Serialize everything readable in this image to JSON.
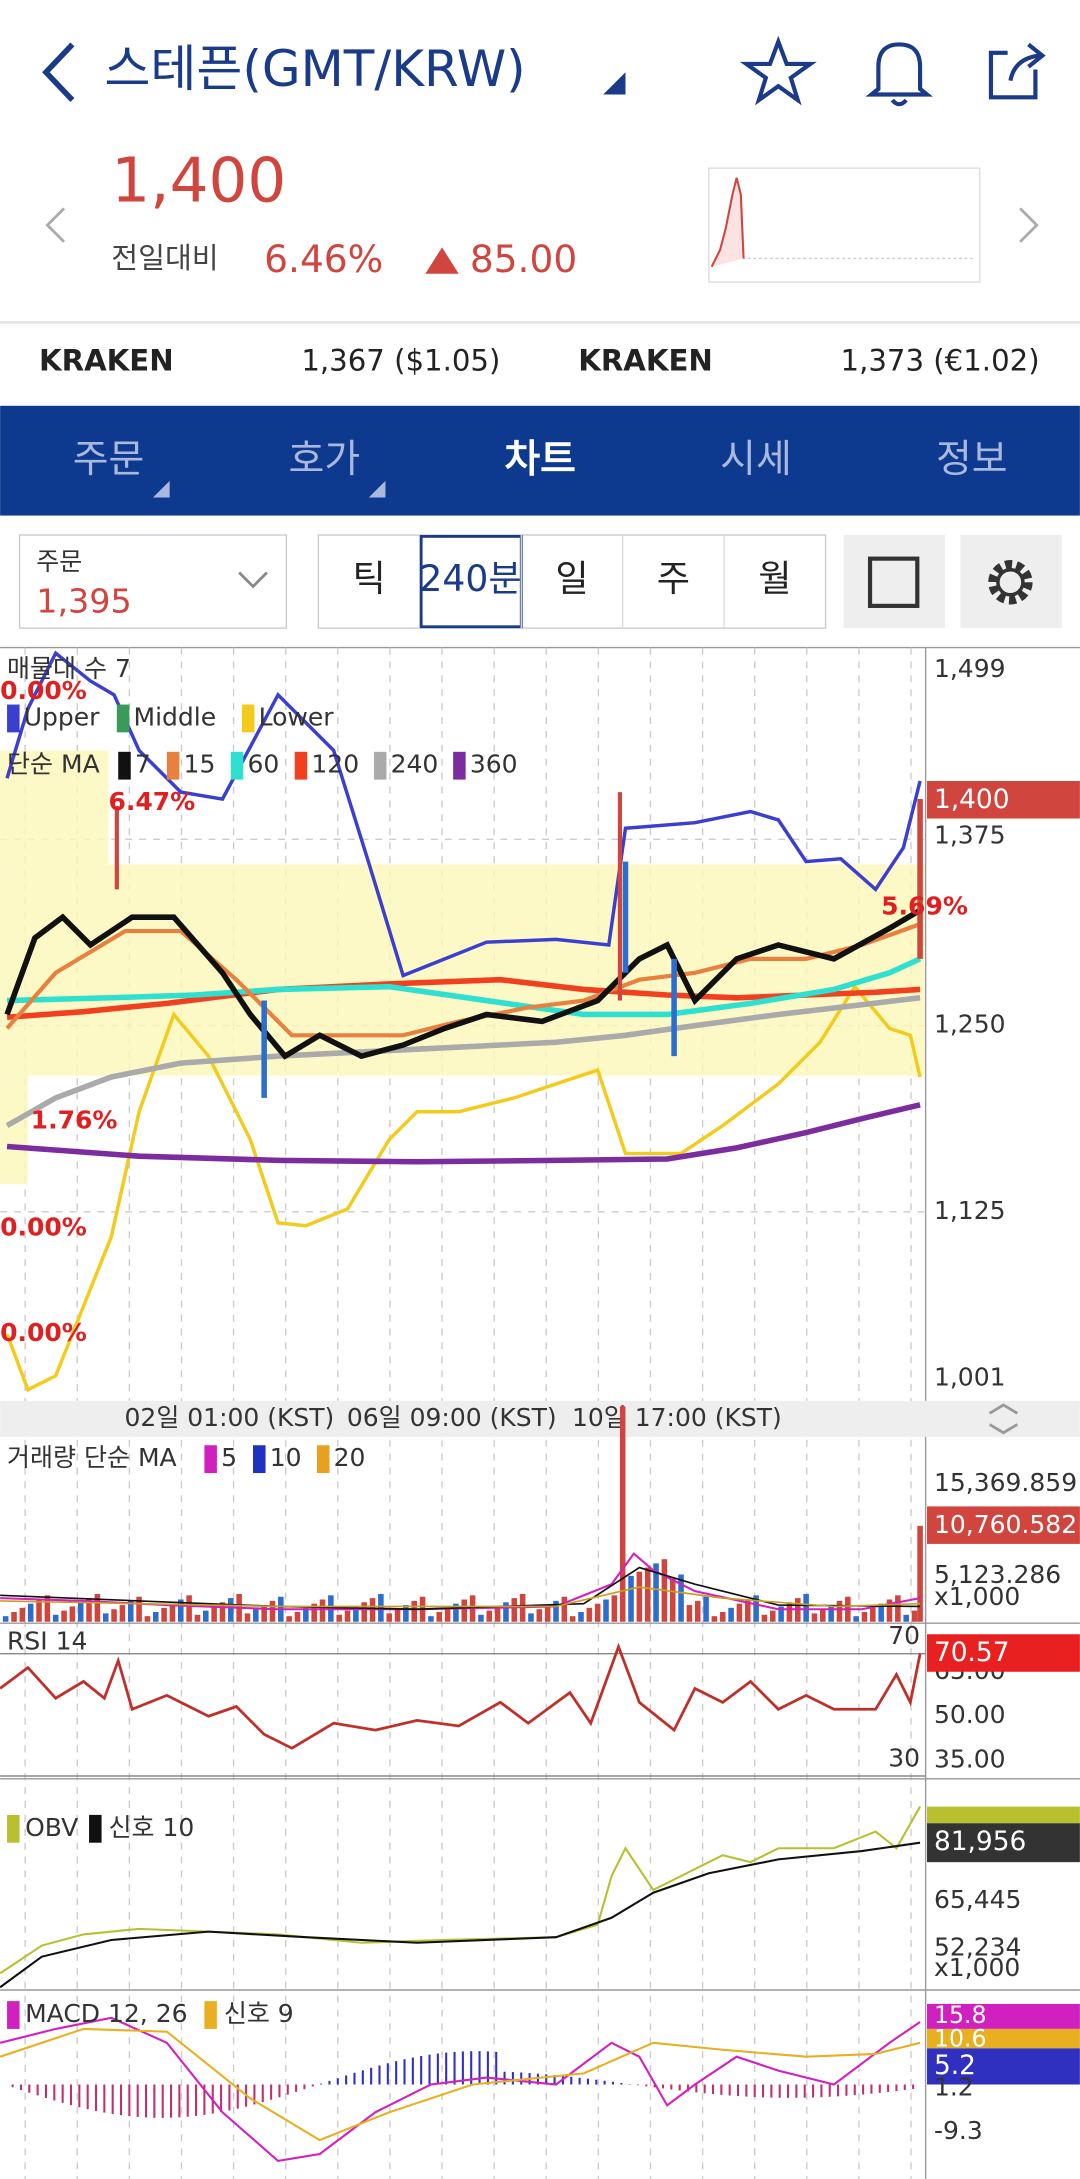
{
  "header": {
    "title": "스테픈(GMT/KRW)"
  },
  "price": {
    "current": "1,400",
    "change_label": "전일대비",
    "change_pct": "6.46%",
    "change_abs": "85.00"
  },
  "exchanges": [
    {
      "name": "KRAKEN",
      "price": "1,367 ($1.05)"
    },
    {
      "name": "KRAKEN",
      "price": "1,373 (€1.02)"
    }
  ],
  "tabs": [
    "주문",
    "호가",
    "차트",
    "시세",
    "정보"
  ],
  "order_box": {
    "label": "주문",
    "value": "1,395"
  },
  "intervals": [
    "틱",
    "240분",
    "일",
    "주",
    "월"
  ],
  "main_chart": {
    "volume_profile": "매물대 수 7",
    "bollinger": [
      "Upper",
      "Middle",
      "Lower"
    ],
    "ma_label": "단순 MA",
    "ma": [
      "7",
      "15",
      "60",
      "120",
      "240",
      "360"
    ],
    "y_labels": [
      "1,499",
      "1,375",
      "1,250",
      "1,125",
      "1,001"
    ],
    "current": "1,400",
    "annotations": [
      "0.00%",
      "6.47%",
      "1.76%",
      "0.00%",
      "0.00%",
      "5.69%"
    ]
  },
  "x_labels": [
    "02일 01:00 (KST)",
    "06일 09:00 (KST)",
    "10일 17:00 (KST)"
  ],
  "volume": {
    "label": "거래량 단순 MA",
    "ma": [
      "5",
      "10",
      "20"
    ],
    "y_labels": [
      "15,369.859",
      "5,123.286"
    ],
    "current": "10,760.582",
    "unit": "x1,000"
  },
  "rsi": {
    "label": "RSI 14",
    "upper": "70",
    "lower": "30",
    "y_labels": [
      "65.00",
      "50.00",
      "35.00"
    ],
    "current": "70.57"
  },
  "obv": {
    "label": "OBV",
    "signal": "신호 10",
    "y_labels": [
      "65,445",
      "52,234"
    ],
    "current": "81,956",
    "unit": "x1,000"
  },
  "macd": {
    "label": "MACD 12, 26",
    "signal": "신호 9",
    "values": [
      "15.8",
      "10.6",
      "5.2"
    ],
    "y_labels": [
      "1.2",
      "-9.3"
    ]
  }
}
